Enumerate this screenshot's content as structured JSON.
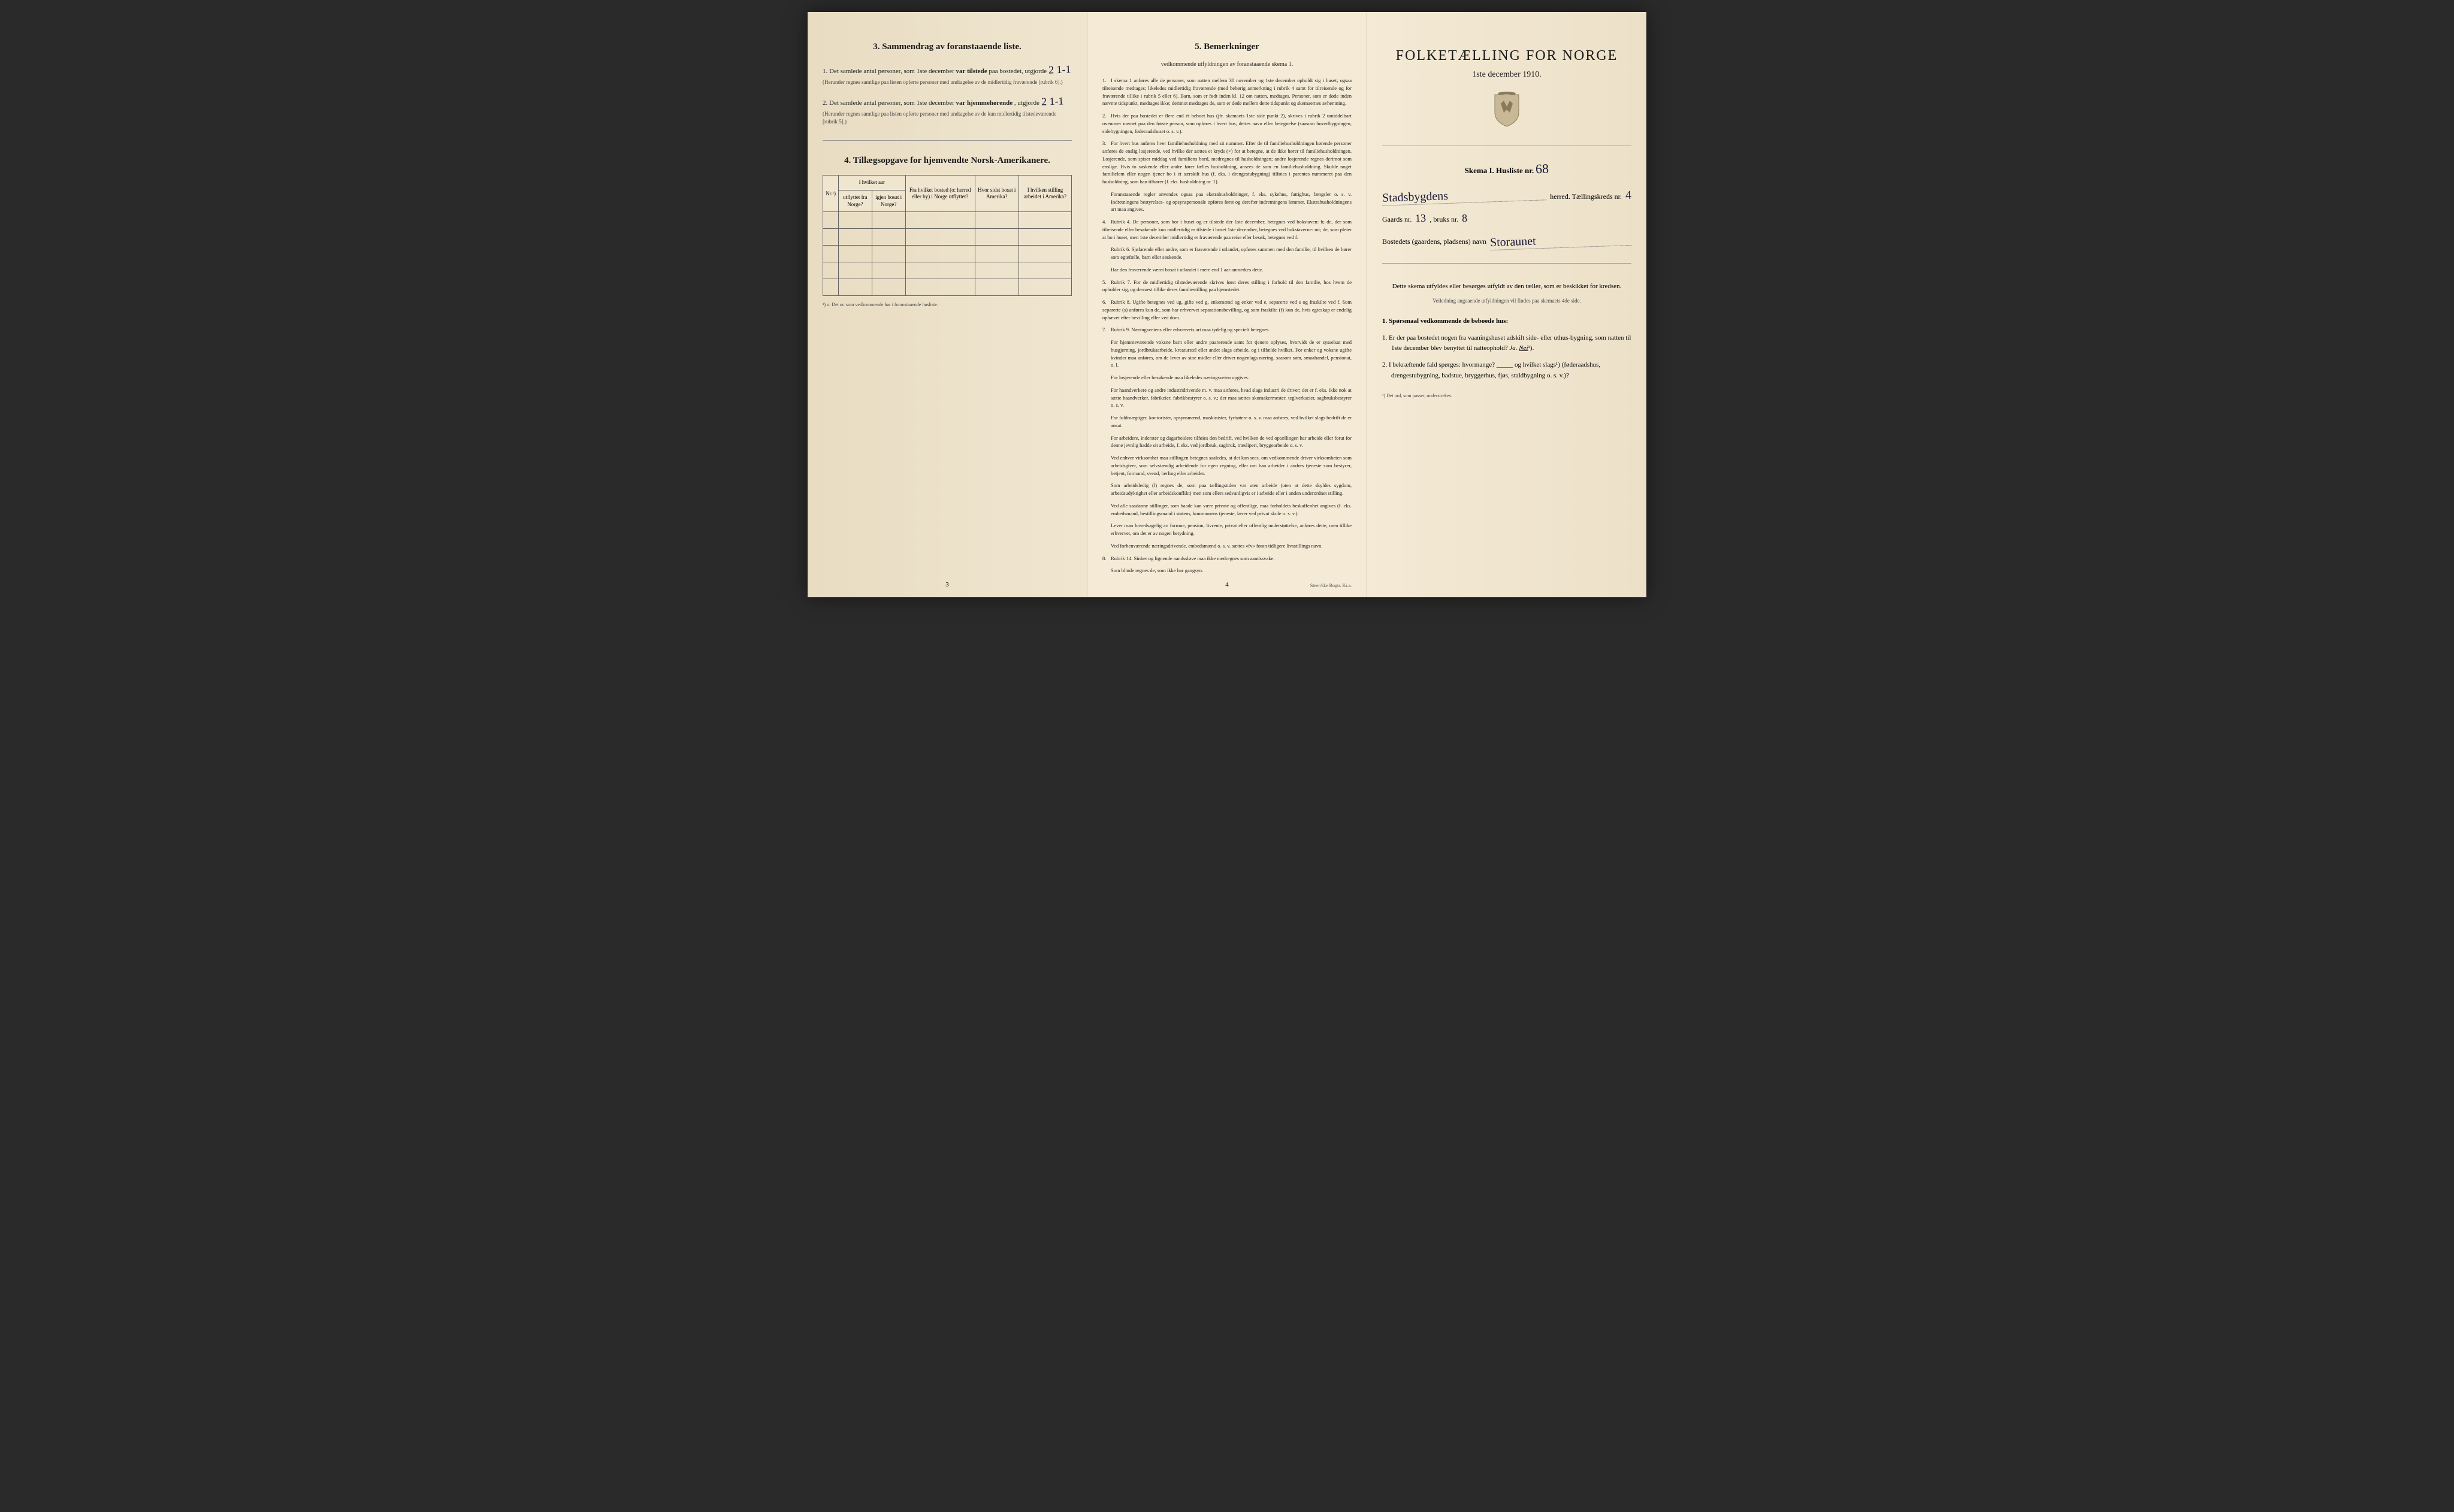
{
  "page3": {
    "section3": {
      "title": "3.   Sammendrag av foranstaaende liste.",
      "item1_prefix": "1. Det samlede antal personer, som 1ste december",
      "item1_bold": "var tilstede",
      "item1_suffix": "paa bostedet, utgjorde",
      "item1_value": "2  1-1",
      "item1_note": "(Herunder regnes samtlige paa listen opførte personer med undtagelse av de midlertidig fraværende [rubrik 6].)",
      "item2_prefix": "2. Det samlede antal personer, som 1ste december",
      "item2_bold": "var hjemmehørende",
      "item2_suffix": ", utgjorde",
      "item2_value": "2  1-1",
      "item2_note": "(Herunder regnes samtlige paa listen opførte personer med undtagelse av de kun midlertidig tilstedeværende [rubrik 5].)"
    },
    "section4": {
      "title": "4.   Tillægsopgave for hjemvendte Norsk-Amerikanere.",
      "columns": [
        "Nr.¹)",
        "I hvilket aar utflyttet fra Norge?",
        "igjen bosat i Norge?",
        "Fra hvilket bosted (o: herred eller by) i Norge utflyttet?",
        "Hvor sidst bosat i Amerika?",
        "I hvilken stilling arbeidet i Amerika?"
      ],
      "col_group": "I hvilket aar",
      "footnote": "¹) o: Det nr. som vedkommende har i foranstaaende husliste."
    },
    "page_num": "3"
  },
  "page4": {
    "title": "5.   Bemerkninger",
    "subtitle": "vedkommende utfyldningen av foranstaaende skema 1.",
    "remarks": [
      {
        "n": "1.",
        "text": "I skema 1 anføres alle de personer, som natten mellem 30 november og 1ste december opholdt sig i huset; ogsaa tilreisende medtages; likeledes midlertidig fraværende (med behørig anmerkning i rubrik 4 samt for tilreisende og for fraværende tillike i rubrik 5 eller 6). Barn, som er født inden kl. 12 om natten, medtages. Personer, som er døde inden nævnte tidspunkt, medtages ikke; derimot medtages de, som er døde mellem dette tidspunkt og skemaernes avhentning."
      },
      {
        "n": "2.",
        "text": "Hvis der paa bostedet er flere end ét beboet hus (jfr. skemaets 1ste side punkt 2), skrives i rubrik 2 umiddelbart ovenover navnet paa den første person, som opføres i hvert hus, dettes navn eller betegnelse (saasom hovedbygningen, sidebygningen, føderaadshuset o. s. v.)."
      },
      {
        "n": "3.",
        "text": "For hvert hus anføres hver familiehusholdning med sit nummer. Efter de til familiehusholdningen hørende personer anføres de enslig losjerende, ved hvilke der sættes et kryds (×) for at betegne, at de ikke hører til familiehusholdningen. Losjerende, som spiser middag ved familiens bord, medregnes til husholdningen; andre losjerende regnes derimot som enslige. Hvis to søskende eller andre fører fælles husholdning, ansees de som en familiehusholdning. Skulde noget familielem eller nogen tjener bo i et særskilt hus (f. eks. i drengestubygning) tilføies i parentes nummeret paa den husholdning, som han tilhører (f. eks. husholdning nr. 1).",
        "sub": "Foranstaaende regler anvendes ogsaa paa ekstrahusholdninger, f. eks. sykehus, fattighus, fængsler o. s. v. Indretningens bestyrelses- og opsynspersonale opføres først og derefter indretningens lemmer. Ekstrahusholdningens art maa angives."
      },
      {
        "n": "4.",
        "text": "Rubrik 4. De personer, som bor i huset og er tilstede der 1ste december, betegnes ved bokstaven: b; de, der som tilreisende eller besøkende kun midlertidig er tilstede i huset 1ste december, betegnes ved bokstaverne: mt; de, som pleier at bo i huset, men 1ste december midlertidig er fraværende paa reise eller besøk, betegnes ved f.",
        "sub": "Rubrik 6. Sjøfarende eller andre, som er fraværende i utlandet, opføres sammen med den familie, til hvilken de hører som egtefælle, barn eller søskende.",
        "sub2": "Har den fraværende været bosat i utlandet i mere end 1 aar anmerkes dette."
      },
      {
        "n": "5.",
        "text": "Rubrik 7. For de midlertidig tilstedeværende skrives først deres stilling i forhold til den familie, hos hvem de opholder sig, og dernæst tillike deres familiestilling paa hjemstedet."
      },
      {
        "n": "6.",
        "text": "Rubrik 8. Ugifte betegnes ved ug, gifte ved g, enkemænd og enker ved e, separerte ved s og fraskilte ved f. Som separerte (s) anføres kun de, som har erhvervet separationsbevilling, og som fraskilte (f) kun de, hvis egteskap er endelig ophævet efter bevilling eller ved dom."
      },
      {
        "n": "7.",
        "text": "Rubrik 9. Næringsveiens eller erhvervets art maa tydelig og specielt betegnes.",
        "sub": "For hjemmeværende voksne barn eller andre paarørende samt for tjenere oplyses, hvorvidt de er sysselsat med husgjerning, jordbruksarbeide, kreaturstel eller andet slags arbeide, og i tilfælde hvilket. For enker og voksne ugifte kvinder maa anføres, om de lever av sine midler eller driver nogenlags næring, saasom søm, smaahandel, pensionat, o. l.",
        "sub2": "For losjerende eller besøkende maa likeledes næringsveien opgives.",
        "sub3": "For haandverkere og andre industridrivende m. v. maa anføres, hvad slags industri de driver; det er f. eks. ikke nok at sætte haandverker, fabrikeier, fabrikbestyrer o. s. v.; der maa sættes skomakermester, teglverkseier, sagbruksbestyrer o. s. v.",
        "sub4": "For fuldmægtiger, kontorister, opsynsmænd, maskinister, fyrbøtere o. s. v. maa anføres, ved hvilket slags bedrift de er ansat.",
        "sub5": "For arbeidere, inderster og dagarbeidere tilføies den bedrift, ved hvilken de ved optællingen har arbeide eller forut for denne jevnlig hadde sit arbeide, f. eks. ved jordbruk, sagbruk, træsliperi, bryggearbeide o. s. v.",
        "sub6": "Ved enhver virksomhet maa stillingen betegnes saaledes, at det kan sees, om vedkommende driver virksomheten som arbeidsgiver, som selvstændig arbeidende for egen regning, eller om han arbeider i andres tjeneste som bestyrer, betjent, formand, svend, lærling eller arbeider.",
        "sub7": "Som arbeidsledig (l) regnes de, som paa tællingstiden var uten arbeide (uten at dette skyldes sygdom, arbeidsudyktighet eller arbeidskonflikt) men som ellers sedvanligvis er i arbeide eller i anden underordnet stilling.",
        "sub8": "Ved alle saadanne stillinger, som baade kan være private og offentlige, maa forholdets beskaffenhet angives (f. eks. embedsmand, bestillingsmand i statens, kommunens tjeneste, lærer ved privat skole o. s. v.).",
        "sub9": "Lever man hovedsagelig av formue, pension, livrente, privat eller offentlig understøttelse, anføres dette, men tillike erhvervet, om det er av nogen betydning.",
        "sub10": "Ved forhenværende næringsdrivende, embedsmænd o. s. v. sættes «fv» foran tidligere livsstillings navn."
      },
      {
        "n": "8.",
        "text": "Rubrik 14. Sinker og lignende aandssløve maa ikke medregnes som aandssvake.",
        "sub": "Som blinde regnes de, som ikke har gangsyn."
      }
    ],
    "page_num": "4",
    "printer": "Steen'ske Bogtr. Kr.a."
  },
  "page5": {
    "title": "FOLKETÆLLING FOR NORGE",
    "date": "1ste december 1910.",
    "skema_label": "Skema I.   Husliste nr.",
    "skema_value": "68",
    "herred_value": "Stadsbygdens",
    "herred_label": "herred.  Tællingskreds nr.",
    "kreds_value": "4",
    "gaards_label": "Gaards nr.",
    "gaards_value": "13",
    "bruks_label": ", bruks nr.",
    "bruks_value": "8",
    "bosted_label": "Bostedets (gaardens, pladsens) navn",
    "bosted_value": "Storaunet",
    "instruction1": "Dette skema utfyldes eller besørges utfyldt av den tæller, som er beskikket for kredsen.",
    "instruction2": "Veiledning angaaende utfyldningen vil findes paa skemaets 4de side.",
    "q_heading": "1. Spørsmaal vedkommende de beboede hus:",
    "q1": "1. Er der paa bostedet nogen fra vaaningshuset adskilt side- eller uthus-bygning, som natten til 1ste december blev benyttet til natteophold?",
    "q1_ja": "Ja.",
    "q1_nei": "Nei",
    "q1_sup": "¹).",
    "q2": "2. I bekræftende fald spørges: hvormange? _____ og hvilket slags¹) (føderaadshus, drengestubygning, badstue, bryggerhus, fjøs, staldbygning o. s. v.)?",
    "footnote": "¹) Det ord, som passer, understrekes."
  },
  "colors": {
    "paper": "#f4ead5",
    "paper_dark": "#e8dcc2",
    "text": "#1a1a1a",
    "ink": "#1a1a3a",
    "border": "#666"
  }
}
